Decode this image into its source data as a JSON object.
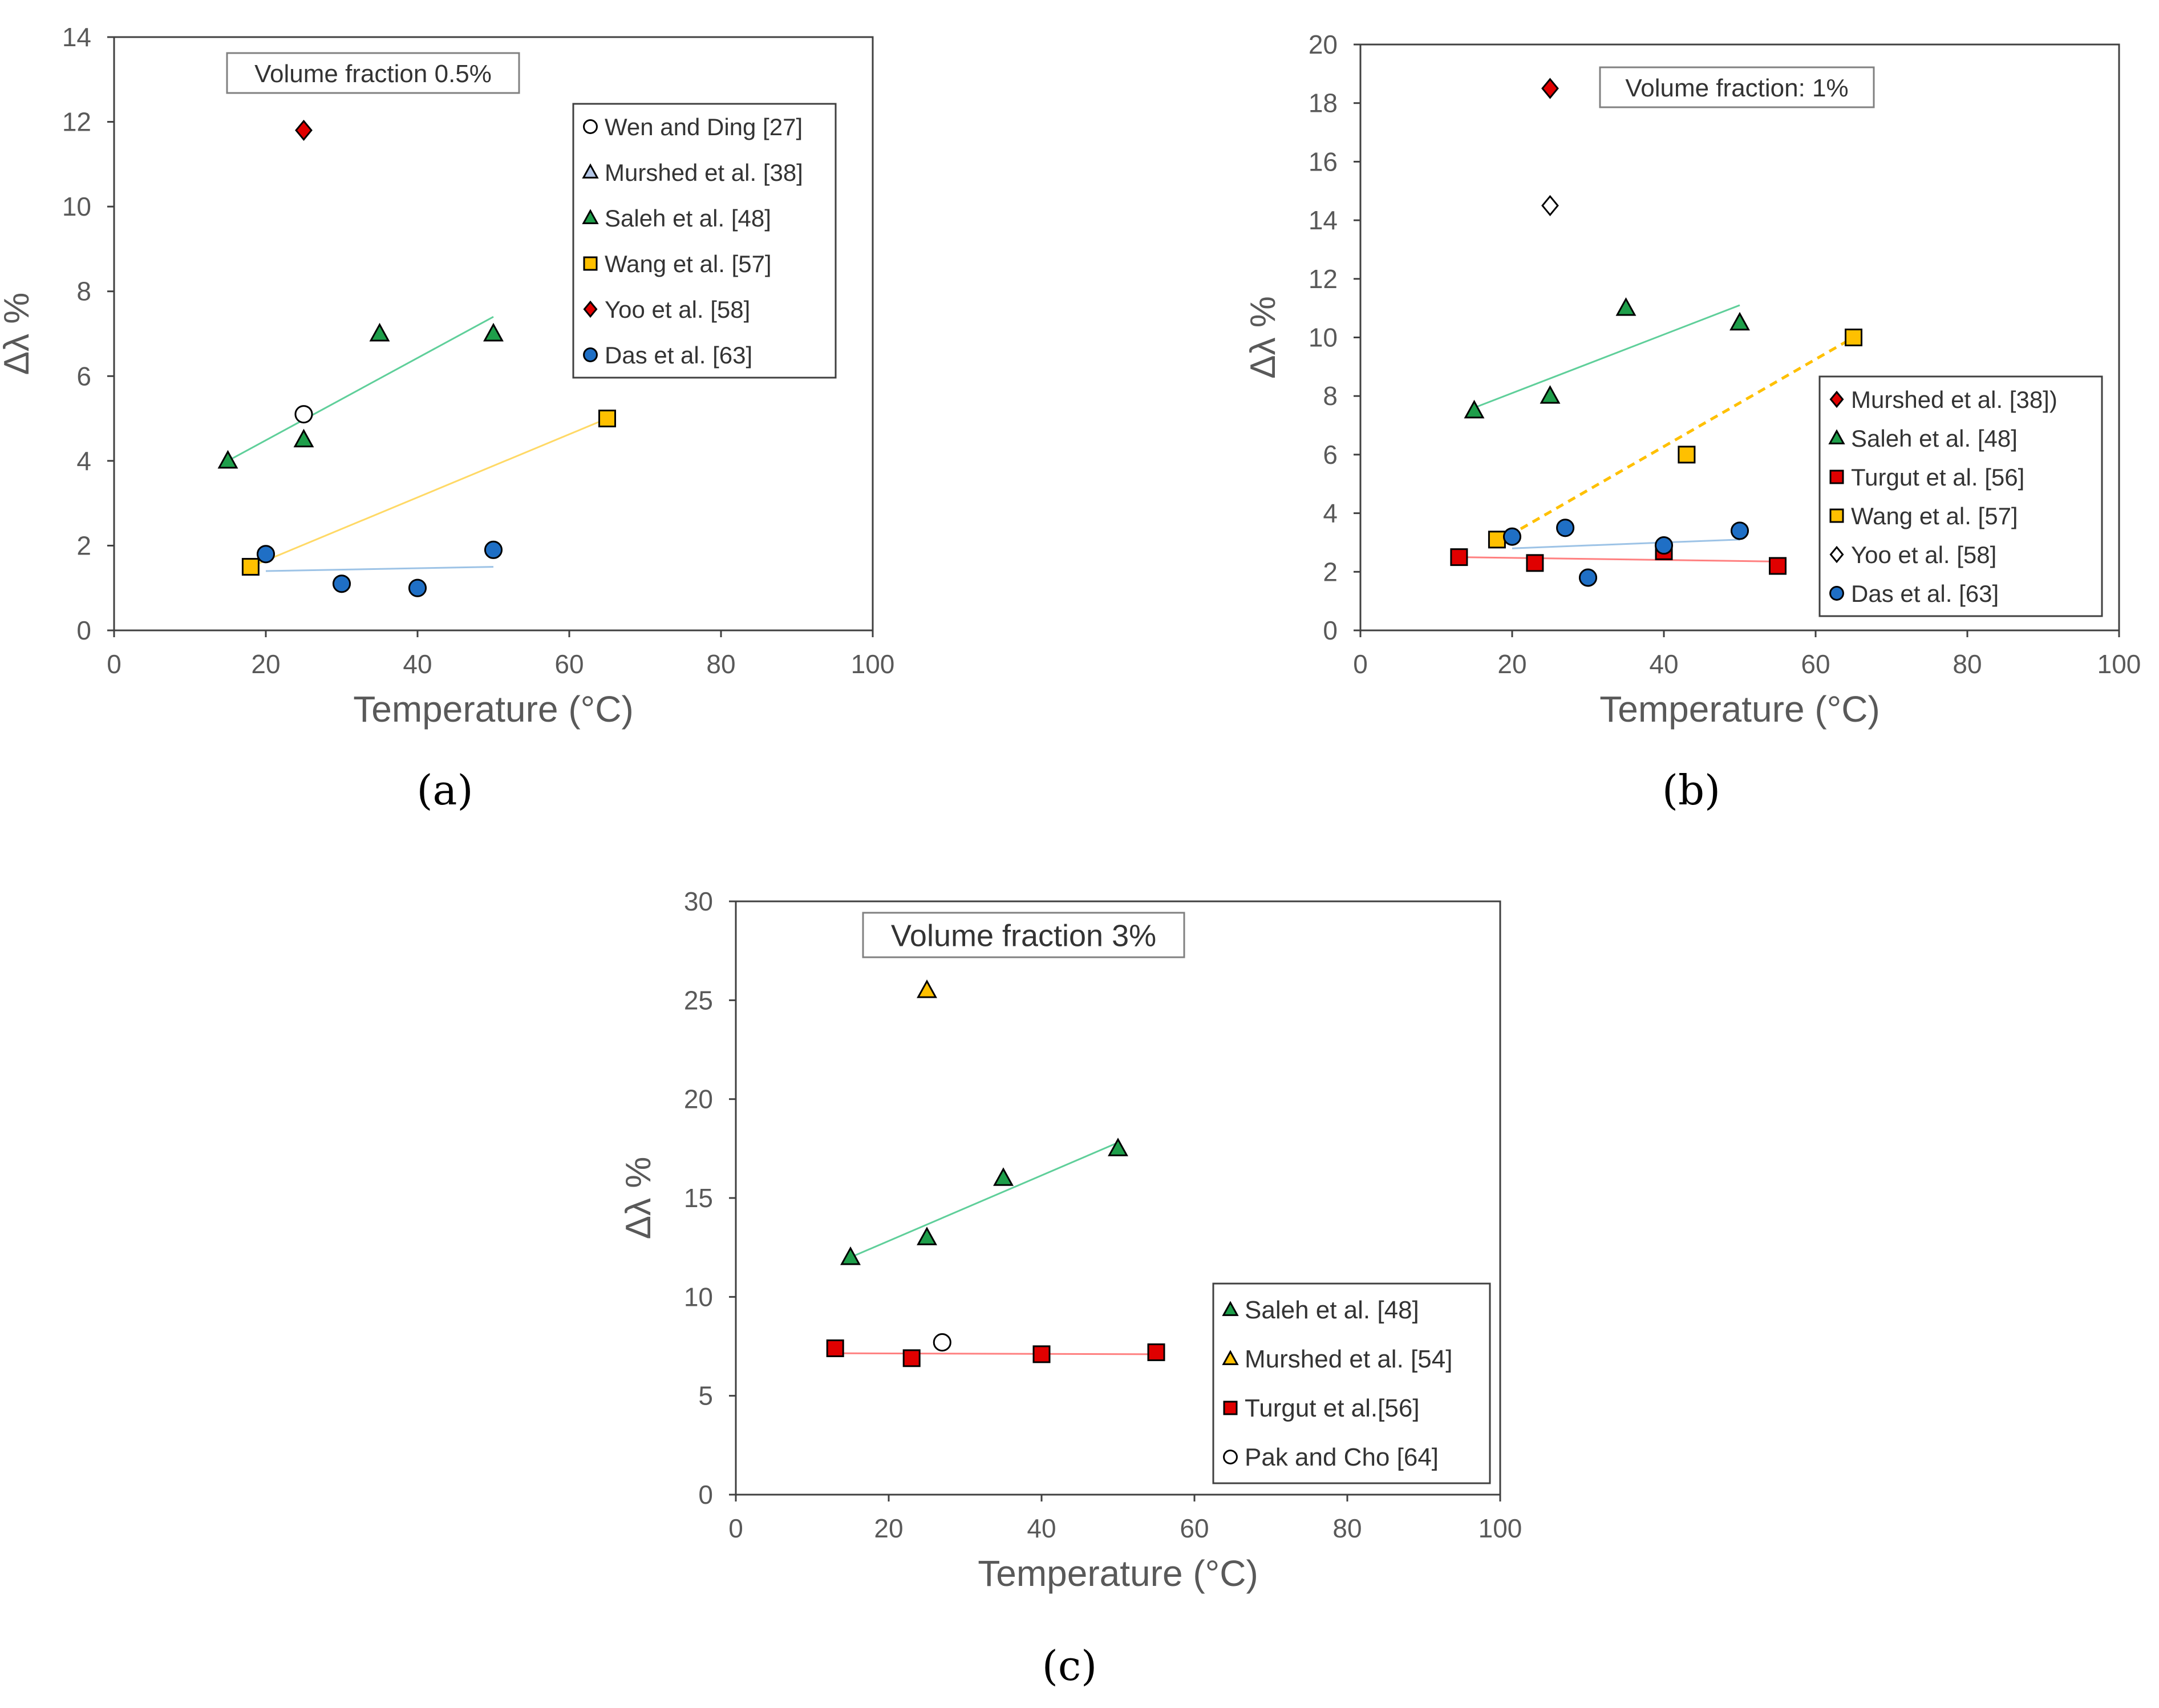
{
  "chart_data": [
    {
      "type": "scatter",
      "caption": "(a)",
      "title": "Volume fraction 0.5%",
      "xlabel": "Temperature (°C)",
      "ylabel": "Δλ %",
      "xlim": [
        0,
        100
      ],
      "xticks": [
        0,
        20,
        40,
        60,
        80,
        100
      ],
      "ylim": [
        0,
        14
      ],
      "yticks": [
        0,
        2,
        4,
        6,
        8,
        10,
        12,
        14
      ],
      "legend_position": "top-right",
      "series": [
        {
          "name": "Wen and  Ding [27]",
          "marker": "circle",
          "fill": "#ffffff",
          "points": [
            [
              25,
              5.1
            ]
          ]
        },
        {
          "name": "Murshed et al. [38]",
          "marker": "triangle",
          "fill": "#b4c7e7",
          "points": []
        },
        {
          "name": "Saleh et al. [48]",
          "marker": "triangle",
          "fill": "#1e9e4a",
          "points": [
            [
              15,
              4.0
            ],
            [
              25,
              4.5
            ],
            [
              35,
              7.0
            ],
            [
              50,
              7.0
            ]
          ],
          "trend": {
            "from": [
              15,
              4.0
            ],
            "to": [
              50,
              7.4
            ],
            "color": "#5fcf9a",
            "dash": false
          }
        },
        {
          "name": "Wang et al. [57]",
          "marker": "square",
          "fill": "#ffc000",
          "points": [
            [
              18,
              1.5
            ],
            [
              65,
              5.0
            ]
          ],
          "trend": {
            "from": [
              18,
              1.5
            ],
            "to": [
              65,
              5.0
            ],
            "color": "#ffd966",
            "dash": false
          }
        },
        {
          "name": "Yoo et al. [58]",
          "marker": "diamond",
          "fill": "#e00000",
          "points": [
            [
              25,
              11.8
            ]
          ]
        },
        {
          "name": "Das et al. [63]",
          "marker": "circle",
          "fill": "#1f6fc5",
          "points": [
            [
              20,
              1.8
            ],
            [
              30,
              1.1
            ],
            [
              40,
              1.0
            ],
            [
              50,
              1.9
            ]
          ],
          "trend": {
            "from": [
              20,
              1.4
            ],
            "to": [
              50,
              1.5
            ],
            "color": "#9dc3e6",
            "dash": false
          }
        }
      ]
    },
    {
      "type": "scatter",
      "caption": "(b)",
      "title": "Volume fraction: 1%",
      "xlabel": "Temperature (°C)",
      "ylabel": "Δλ %",
      "xlim": [
        0,
        100
      ],
      "xticks": [
        0,
        20,
        40,
        60,
        80,
        100
      ],
      "ylim": [
        0,
        20
      ],
      "yticks": [
        0,
        2,
        4,
        6,
        8,
        10,
        12,
        14,
        16,
        18,
        20
      ],
      "legend_position": "bottom-right",
      "series": [
        {
          "name": "Murshed et al. [38])",
          "marker": "diamond",
          "fill": "#e00000",
          "points": [
            [
              25,
              18.5
            ]
          ]
        },
        {
          "name": "Saleh et al. [48]",
          "marker": "triangle",
          "fill": "#1e9e4a",
          "points": [
            [
              15,
              7.5
            ],
            [
              25,
              8.0
            ],
            [
              35,
              11.0
            ],
            [
              50,
              10.5
            ]
          ],
          "trend": {
            "from": [
              15,
              7.6
            ],
            "to": [
              50,
              11.1
            ],
            "color": "#5fcf9a",
            "dash": false
          }
        },
        {
          "name": "Turgut et al. [56]",
          "marker": "square",
          "fill": "#e00000",
          "points": [
            [
              13,
              2.5
            ],
            [
              23,
              2.3
            ],
            [
              40,
              2.7
            ],
            [
              55,
              2.2
            ]
          ],
          "trend": {
            "from": [
              13,
              2.5
            ],
            "to": [
              55,
              2.35
            ],
            "color": "#ff8080",
            "dash": false
          }
        },
        {
          "name": "Wang et al. [57]",
          "marker": "square",
          "fill": "#ffc000",
          "points": [
            [
              18,
              3.1
            ],
            [
              43,
              6.0
            ],
            [
              65,
              10.0
            ]
          ],
          "trend": {
            "from": [
              18,
              3.0
            ],
            "to": [
              65,
              10.0
            ],
            "color": "#ffc000",
            "dash": true
          }
        },
        {
          "name": "Yoo et al. [58]",
          "marker": "diamond",
          "fill": "#ffffff",
          "points": [
            [
              25,
              14.5
            ]
          ]
        },
        {
          "name": "Das et al. [63]",
          "marker": "circle",
          "fill": "#1f6fc5",
          "points": [
            [
              20,
              3.2
            ],
            [
              27,
              3.5
            ],
            [
              30,
              1.8
            ],
            [
              40,
              2.9
            ],
            [
              50,
              3.4
            ]
          ],
          "trend": {
            "from": [
              20,
              2.8
            ],
            "to": [
              50,
              3.1
            ],
            "color": "#9dc3e6",
            "dash": false
          }
        }
      ]
    },
    {
      "type": "scatter",
      "caption": "(c)",
      "title": "Volume fraction 3%",
      "xlabel": "Temperature (°C)",
      "ylabel": "Δλ %",
      "xlim": [
        0,
        100
      ],
      "xticks": [
        0,
        20,
        40,
        60,
        80,
        100
      ],
      "ylim": [
        0,
        30
      ],
      "yticks": [
        0,
        5,
        10,
        15,
        20,
        25,
        30
      ],
      "legend_position": "bottom-right",
      "series": [
        {
          "name": "Saleh et al. [48]",
          "marker": "triangle",
          "fill": "#1e9e4a",
          "points": [
            [
              15,
              12.0
            ],
            [
              25,
              13.0
            ],
            [
              35,
              16.0
            ],
            [
              50,
              17.5
            ]
          ],
          "trend": {
            "from": [
              15,
              12.0
            ],
            "to": [
              50,
              17.8
            ],
            "color": "#5fcf9a",
            "dash": false
          }
        },
        {
          "name": "Murshed et al. [54]",
          "marker": "triangle",
          "fill": "#ffc000",
          "points": [
            [
              25,
              25.5
            ]
          ]
        },
        {
          "name": "Turgut et al.[56]",
          "marker": "square",
          "fill": "#e00000",
          "points": [
            [
              13,
              7.4
            ],
            [
              23,
              6.9
            ],
            [
              40,
              7.1
            ],
            [
              55,
              7.2
            ]
          ],
          "trend": {
            "from": [
              13,
              7.15
            ],
            "to": [
              55,
              7.1
            ],
            "color": "#ff8080",
            "dash": false
          }
        },
        {
          "name": "Pak and Cho [64]",
          "marker": "circle",
          "fill": "#ffffff",
          "points": [
            [
              27,
              7.7
            ]
          ]
        }
      ]
    }
  ]
}
